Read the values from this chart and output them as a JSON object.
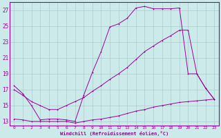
{
  "xlabel": "Windchill (Refroidissement éolien,°C)",
  "background_color": "#cceaea",
  "grid_color": "#aacccc",
  "line_color": "#990099",
  "xlim": [
    -0.5,
    23.5
  ],
  "ylim": [
    12.5,
    28.0
  ],
  "xticks": [
    0,
    1,
    2,
    3,
    4,
    5,
    6,
    7,
    8,
    9,
    10,
    11,
    12,
    13,
    14,
    15,
    16,
    17,
    18,
    19,
    20,
    21,
    22,
    23
  ],
  "yticks": [
    13,
    15,
    17,
    19,
    21,
    23,
    25,
    27
  ],
  "line1_x": [
    0,
    1,
    2,
    3,
    4,
    5,
    6,
    7,
    8,
    9,
    10,
    11,
    12,
    13,
    14,
    15,
    16,
    17,
    18,
    19,
    20,
    21,
    22,
    23
  ],
  "line1_y": [
    17.5,
    16.5,
    15.0,
    13.2,
    13.3,
    13.3,
    13.2,
    13.0,
    16.3,
    19.2,
    21.8,
    24.9,
    25.3,
    26.0,
    27.3,
    27.5,
    27.2,
    27.2,
    27.2,
    27.3,
    19.0,
    19.0,
    17.2,
    15.8
  ],
  "line2_x": [
    0,
    1,
    2,
    3,
    4,
    5,
    6,
    7,
    8,
    9,
    10,
    11,
    12,
    13,
    14,
    15,
    16,
    17,
    18,
    19,
    20,
    21,
    22,
    23
  ],
  "line2_y": [
    17.0,
    16.3,
    15.5,
    15.0,
    14.5,
    14.5,
    15.0,
    15.5,
    16.0,
    16.8,
    17.5,
    18.3,
    19.0,
    19.8,
    20.8,
    21.8,
    22.5,
    23.2,
    23.8,
    24.5,
    24.5,
    19.0,
    17.2,
    15.8
  ],
  "line3_x": [
    0,
    1,
    2,
    3,
    4,
    5,
    6,
    7,
    8,
    9,
    10,
    11,
    12,
    13,
    14,
    15,
    16,
    17,
    18,
    19,
    20,
    21,
    22,
    23
  ],
  "line3_y": [
    13.3,
    13.2,
    13.0,
    13.0,
    13.0,
    13.0,
    13.0,
    12.8,
    13.0,
    13.2,
    13.3,
    13.5,
    13.7,
    14.0,
    14.3,
    14.5,
    14.8,
    15.0,
    15.2,
    15.4,
    15.5,
    15.6,
    15.7,
    15.8
  ]
}
